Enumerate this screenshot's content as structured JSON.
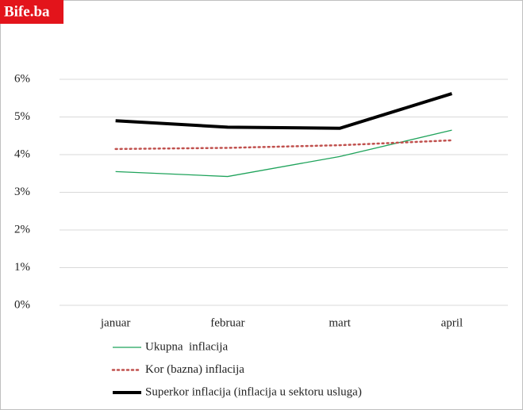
{
  "watermark": "Bife.ba",
  "chart_data": {
    "type": "line",
    "categories": [
      "januar",
      "februar",
      "mart",
      "april"
    ],
    "series": [
      {
        "name": "Ukupna  inflacija",
        "color": "#1fa35b",
        "style": "solid",
        "width": 1.3,
        "values": [
          3.55,
          3.42,
          3.95,
          4.65
        ]
      },
      {
        "name": "Kor (bazna) inflacija",
        "color": "#c0504d",
        "style": "dotted",
        "width": 2.5,
        "values": [
          4.15,
          4.18,
          4.25,
          4.38
        ]
      },
      {
        "name": "Superkor inflacija (inflacija u sektoru usluga)",
        "color": "#000000",
        "style": "solid",
        "width": 4,
        "values": [
          4.9,
          4.73,
          4.7,
          5.62
        ]
      }
    ],
    "ylim": [
      0,
      6
    ],
    "yticks": [
      {
        "value": 0,
        "label": "0%"
      },
      {
        "value": 1,
        "label": "1%"
      },
      {
        "value": 2,
        "label": "2%"
      },
      {
        "value": 3,
        "label": "3%"
      },
      {
        "value": 4,
        "label": "4%"
      },
      {
        "value": 5,
        "label": "5%"
      },
      {
        "value": 6,
        "label": "6%"
      }
    ],
    "grid": true,
    "legend": "bottom"
  }
}
